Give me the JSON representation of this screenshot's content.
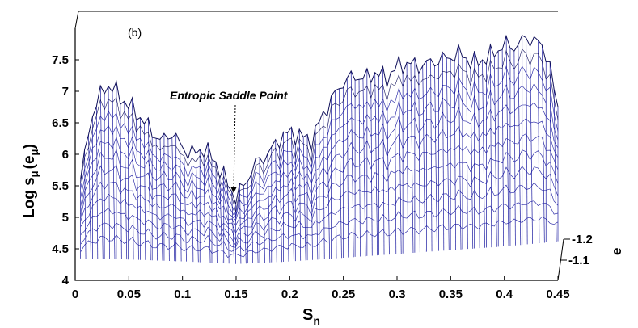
{
  "chart_data": {
    "type": "surface-mesh",
    "panel_label": "(b)",
    "annotation": "Entropic Saddle Point",
    "annotation_at": {
      "x": 0.15,
      "y": 5.35
    },
    "xlabel": {
      "base": "S",
      "sub": "n"
    },
    "ylabel": {
      "pre": "Log s",
      "sub1": "μ",
      "mid": "(e",
      "sub2": "μ",
      "post": ")"
    },
    "zlabel": "e",
    "xlim": [
      0,
      0.45
    ],
    "ylim": [
      4,
      8
    ],
    "x_ticks": [
      "0",
      "0.05",
      "0.1",
      "0.15",
      "0.2",
      "0.25",
      "0.3",
      "0.35",
      "0.4",
      "0.45"
    ],
    "y_ticks": [
      "4",
      "4.5",
      "5",
      "5.5",
      "6",
      "6.5",
      "7",
      "7.5"
    ],
    "z_ticks": [
      "-1.2",
      "-1.1"
    ],
    "line_color": "#1a1aa0",
    "max_curve": {
      "x": [
        0.005,
        0.015,
        0.025,
        0.03,
        0.035,
        0.045,
        0.055,
        0.06,
        0.07,
        0.08,
        0.09,
        0.1,
        0.11,
        0.12,
        0.13,
        0.14,
        0.15,
        0.16,
        0.17,
        0.18,
        0.19,
        0.2,
        0.21,
        0.22,
        0.23,
        0.24,
        0.25,
        0.26,
        0.27,
        0.28,
        0.29,
        0.3,
        0.31,
        0.32,
        0.33,
        0.34,
        0.35,
        0.36,
        0.37,
        0.38,
        0.39,
        0.4,
        0.41,
        0.42,
        0.43,
        0.44,
        0.45
      ],
      "y": [
        5.6,
        6.6,
        7.0,
        7.1,
        7.05,
        6.85,
        6.7,
        6.6,
        6.4,
        6.2,
        6.35,
        6.1,
        6.0,
        6.1,
        5.9,
        5.6,
        5.3,
        5.6,
        5.9,
        6.0,
        6.25,
        6.35,
        6.3,
        6.2,
        6.6,
        6.9,
        7.15,
        7.25,
        7.2,
        7.3,
        7.2,
        7.4,
        7.45,
        7.4,
        7.45,
        7.5,
        7.55,
        7.6,
        7.45,
        7.5,
        7.6,
        7.75,
        7.7,
        7.85,
        7.8,
        7.6,
        6.7
      ]
    },
    "floor_curve": {
      "x": [
        0,
        0.05,
        0.1,
        0.15,
        0.2,
        0.25,
        0.3,
        0.35,
        0.4,
        0.45
      ],
      "y": [
        4.35,
        4.33,
        4.3,
        4.26,
        4.3,
        4.36,
        4.42,
        4.48,
        4.54,
        4.62
      ]
    },
    "grid": false
  }
}
